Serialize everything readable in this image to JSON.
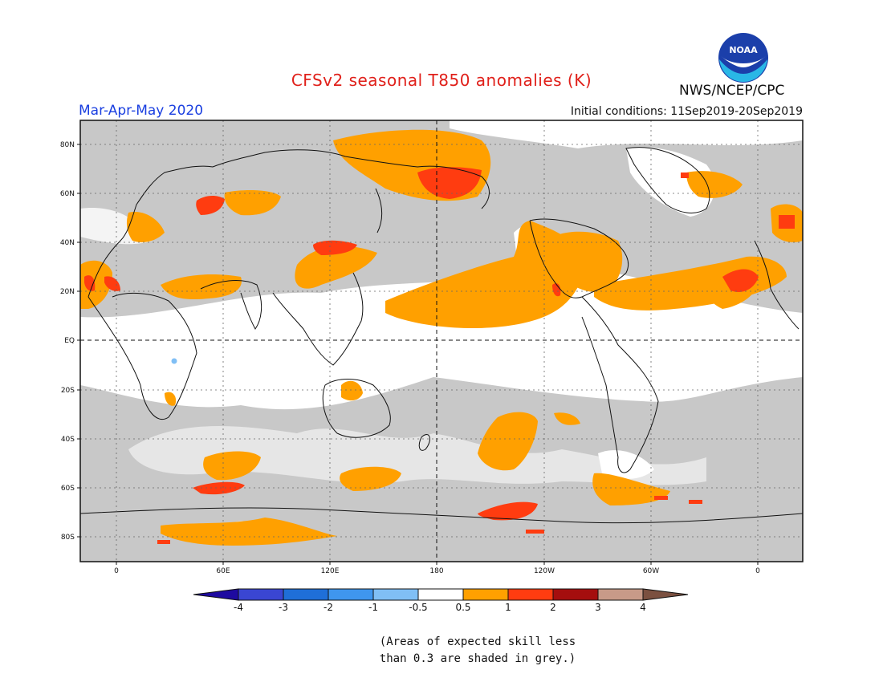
{
  "title": "CFSv2 seasonal T850 anomalies (K)",
  "season": "Mar-Apr-May 2020",
  "initial_conditions": "Initial conditions: 11Sep2019-20Sep2019",
  "agency": "NWS/NCEP/CPC",
  "logo_text": "NOAA",
  "lat_labels": [
    "80N",
    "60N",
    "40N",
    "20N",
    "EQ",
    "20S",
    "40S",
    "60S",
    "80S"
  ],
  "lon_labels": [
    "0",
    "60E",
    "120E",
    "180",
    "120W",
    "60W",
    "0"
  ],
  "colorbar": {
    "labels": [
      "-4",
      "-3",
      "-2",
      "-1",
      "-0.5",
      "0.5",
      "1",
      "2",
      "3",
      "4"
    ],
    "colors": [
      "#1e0aa0",
      "#3a46d2",
      "#1f6fd8",
      "#3f96ee",
      "#80bff5",
      "#ffffff",
      "#ffa000",
      "#ff3c10",
      "#a50e0e",
      "#c89a88",
      "#7b5040"
    ]
  },
  "legend_note": [
    "(Areas of expected skill less",
    "than 0.3 are shaded in grey.)"
  ],
  "colors": {
    "grey_low_skill": "#c8c8c8",
    "anomaly_0_5_to_1": "#ffa000",
    "anomaly_1_to_2": "#ff3c10",
    "title_red": "#e0201a",
    "season_blue": "#1a3fe0"
  }
}
